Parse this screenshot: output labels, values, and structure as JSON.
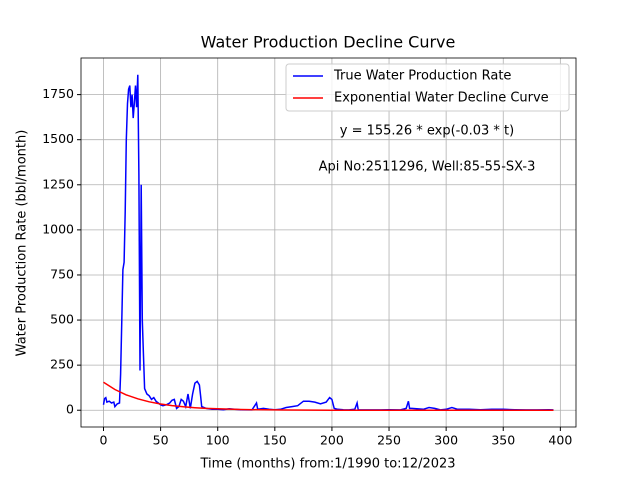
{
  "chart_data": {
    "type": "line",
    "title": "Water Production Decline Curve",
    "xlabel": "Time (months) from:1/1990 to:12/2023",
    "ylabel": "Water Production Rate (bbl/month)",
    "annotations": [
      "y = 155.26 * exp(-0.03 * t)",
      "Api No:2511296, Well:85-55-SX-3"
    ],
    "xlim": [
      -19.7,
      413.7
    ],
    "ylim": [
      -93,
      1953
    ],
    "xticks": [
      0,
      50,
      100,
      150,
      200,
      250,
      300,
      350,
      400
    ],
    "yticks": [
      0,
      250,
      500,
      750,
      1000,
      1250,
      1500,
      1750
    ],
    "grid": true,
    "legend": "upper right",
    "series": [
      {
        "name": "True Water Production Rate",
        "color": "#0000ff",
        "x": [
          0,
          1,
          2,
          3,
          5,
          7,
          9,
          10,
          12,
          14,
          15,
          16,
          17,
          18,
          19,
          20,
          21,
          22,
          23,
          24,
          25,
          26,
          27,
          28,
          29,
          30,
          31,
          32,
          33,
          34,
          35,
          36,
          38,
          40,
          42,
          44,
          46,
          48,
          50,
          52,
          55,
          58,
          60,
          62,
          64,
          66,
          68,
          70,
          72,
          74,
          76,
          78,
          80,
          82,
          84,
          85,
          86,
          90,
          95,
          100,
          105,
          110,
          115,
          120,
          130,
          134,
          135,
          140,
          145,
          150,
          155,
          160,
          165,
          170,
          175,
          180,
          185,
          190,
          195,
          198,
          200,
          202,
          205,
          210,
          215,
          220,
          222,
          223,
          230,
          240,
          250,
          260,
          265,
          267,
          268,
          270,
          280,
          285,
          290,
          295,
          300,
          305,
          310,
          320,
          330,
          340,
          350,
          360,
          370,
          380,
          390,
          394
        ],
        "values": [
          30,
          65,
          70,
          45,
          50,
          40,
          45,
          20,
          35,
          40,
          200,
          500,
          780,
          820,
          1100,
          1500,
          1700,
          1780,
          1800,
          1680,
          1750,
          1620,
          1700,
          1800,
          1680,
          1860,
          1300,
          220,
          1250,
          500,
          300,
          120,
          90,
          80,
          60,
          70,
          50,
          40,
          30,
          25,
          30,
          40,
          55,
          60,
          10,
          20,
          60,
          50,
          20,
          90,
          10,
          90,
          150,
          160,
          140,
          80,
          20,
          10,
          5,
          5,
          3,
          8,
          5,
          3,
          2,
          40,
          5,
          10,
          5,
          3,
          5,
          15,
          20,
          25,
          50,
          50,
          45,
          35,
          45,
          70,
          60,
          10,
          5,
          3,
          2,
          5,
          40,
          3,
          2,
          2,
          3,
          2,
          10,
          50,
          10,
          10,
          5,
          15,
          10,
          2,
          5,
          15,
          5,
          5,
          3,
          5,
          5,
          3,
          2,
          2,
          3,
          2
        ]
      },
      {
        "name": "Exponential Water Decline Curve",
        "color": "#ff0000",
        "x": [
          0,
          10,
          20,
          30,
          40,
          50,
          60,
          70,
          80,
          90,
          100,
          120,
          140,
          160,
          200,
          250,
          300,
          394
        ],
        "values": [
          155.3,
          115.0,
          85.2,
          63.1,
          46.8,
          34.6,
          25.7,
          19.0,
          14.1,
          10.4,
          7.7,
          4.2,
          2.3,
          1.3,
          0.4,
          0.1,
          0.02,
          0.001
        ]
      }
    ]
  }
}
